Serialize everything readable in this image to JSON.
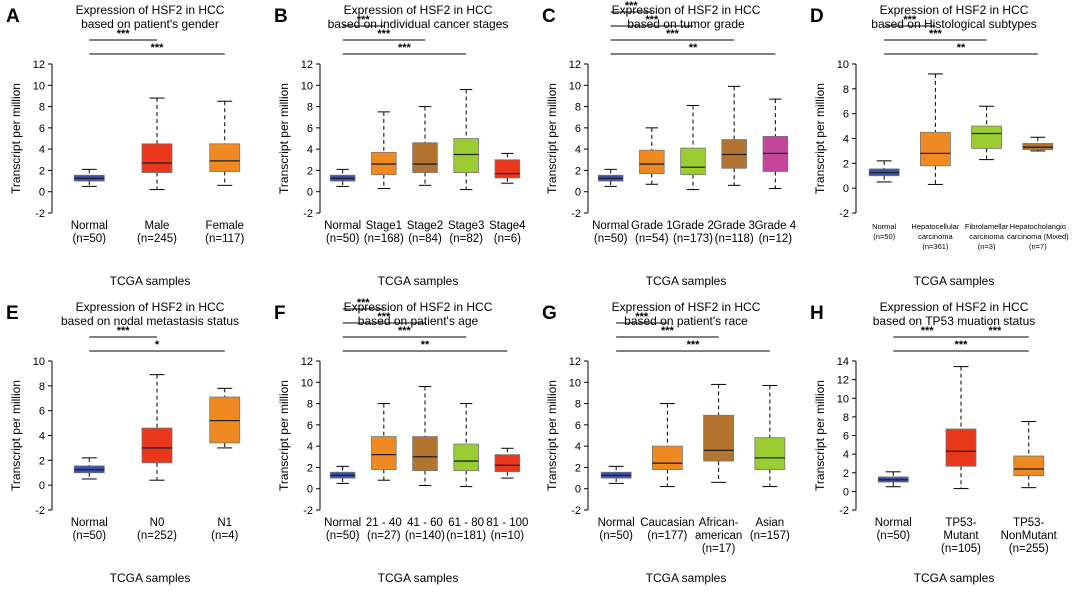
{
  "chart_data": [
    {
      "type": "boxplot",
      "panel_label": "A",
      "title": [
        "Expression of HSF2 in HCC",
        "based on patient's gender"
      ],
      "ylabel": "Transcript per million",
      "xlabel": "TCGA samples",
      "ylim": [
        -2,
        12
      ],
      "yticks": [
        -2,
        0,
        2,
        4,
        6,
        8,
        10,
        12
      ],
      "categories": [
        {
          "name": "Normal",
          "n": "(n=50)",
          "color": "#3b4fb0",
          "min": 0.5,
          "q1": 1.0,
          "median": 1.25,
          "q3": 1.55,
          "max": 2.1
        },
        {
          "name": "Male",
          "n": "(n=245)",
          "color": "#e8371b",
          "min": 0.2,
          "q1": 1.8,
          "median": 2.7,
          "q3": 4.5,
          "max": 8.8
        },
        {
          "name": "Female",
          "n": "(n=117)",
          "color": "#ef8a22",
          "min": 0.6,
          "q1": 1.9,
          "median": 2.9,
          "q3": 4.5,
          "max": 8.5
        }
      ],
      "significance": [
        {
          "from": 0,
          "to": 1,
          "label": "***",
          "level": 0
        },
        {
          "from": 0,
          "to": 2,
          "label": "***",
          "level": 1
        }
      ]
    },
    {
      "type": "boxplot",
      "panel_label": "B",
      "title": [
        "Expression of HSF2 in HCC",
        "based on individual cancer stages"
      ],
      "ylabel": "Transcript per million",
      "xlabel": "TCGA samples",
      "ylim": [
        -2,
        12
      ],
      "yticks": [
        -2,
        0,
        2,
        4,
        6,
        8,
        10,
        12
      ],
      "categories": [
        {
          "name": "Normal",
          "n": "(n=50)",
          "color": "#3b4fb0",
          "min": 0.5,
          "q1": 1.0,
          "median": 1.25,
          "q3": 1.55,
          "max": 2.1
        },
        {
          "name": "Stage1",
          "n": "(n=168)",
          "color": "#ef8a22",
          "min": 0.3,
          "q1": 1.6,
          "median": 2.6,
          "q3": 3.7,
          "max": 7.5
        },
        {
          "name": "Stage2",
          "n": "(n=84)",
          "color": "#b2742e",
          "min": 0.6,
          "q1": 1.8,
          "median": 2.6,
          "q3": 4.6,
          "max": 8.0
        },
        {
          "name": "Stage3",
          "n": "(n=82)",
          "color": "#9acd32",
          "min": 0.2,
          "q1": 1.8,
          "median": 3.5,
          "q3": 5.0,
          "max": 9.6
        },
        {
          "name": "Stage4",
          "n": "(n=6)",
          "color": "#e8371b",
          "min": 0.8,
          "q1": 1.3,
          "median": 1.7,
          "q3": 3.0,
          "max": 3.6
        }
      ],
      "significance": [
        {
          "from": 0,
          "to": 1,
          "label": "***",
          "level": 0
        },
        {
          "from": 0,
          "to": 2,
          "label": "***",
          "level": 1
        },
        {
          "from": 0,
          "to": 3,
          "label": "***",
          "level": 2
        }
      ]
    },
    {
      "type": "boxplot",
      "panel_label": "C",
      "title": [
        "Expression of HSF2 in HCC",
        "based on tumor grade"
      ],
      "ylabel": "Transcript per million",
      "xlabel": "TCGA samples",
      "ylim": [
        -2,
        12
      ],
      "yticks": [
        -2,
        0,
        2,
        4,
        6,
        8,
        10,
        12
      ],
      "categories": [
        {
          "name": "Normal",
          "n": "(n=50)",
          "color": "#3b4fb0",
          "min": 0.5,
          "q1": 1.0,
          "median": 1.25,
          "q3": 1.55,
          "max": 2.1
        },
        {
          "name": "Grade 1",
          "n": "(n=54)",
          "color": "#ef8a22",
          "min": 0.7,
          "q1": 1.7,
          "median": 2.6,
          "q3": 3.9,
          "max": 6.0
        },
        {
          "name": "Grade 2",
          "n": "(n=173)",
          "color": "#9acd32",
          "min": 0.2,
          "q1": 1.6,
          "median": 2.3,
          "q3": 4.1,
          "max": 8.1
        },
        {
          "name": "Grade 3",
          "n": "(n=118)",
          "color": "#b2742e",
          "min": 0.6,
          "q1": 2.2,
          "median": 3.5,
          "q3": 4.9,
          "max": 9.9
        },
        {
          "name": "Grade 4",
          "n": "(n=12)",
          "color": "#c2479b",
          "min": 0.3,
          "q1": 1.9,
          "median": 3.6,
          "q3": 5.2,
          "max": 8.7
        }
      ],
      "significance": [
        {
          "from": 0,
          "to": 1,
          "label": "***",
          "level": 0
        },
        {
          "from": 0,
          "to": 2,
          "label": "***",
          "level": 1
        },
        {
          "from": 0,
          "to": 3,
          "label": "***",
          "level": 2
        },
        {
          "from": 0,
          "to": 4,
          "label": "**",
          "level": 3
        }
      ]
    },
    {
      "type": "boxplot",
      "panel_label": "D",
      "title": [
        "Expression of HSF2 in HCC",
        "based on Histological subtypes"
      ],
      "ylabel": "Transcript per million",
      "xlabel": "TCGA samples",
      "ylim": [
        -2,
        10
      ],
      "yticks": [
        -2,
        0,
        2,
        4,
        6,
        8,
        10
      ],
      "small_labels": true,
      "categories": [
        {
          "name": "Normal",
          "n": "(n=50)",
          "color": "#3b4fb0",
          "min": 0.5,
          "q1": 1.0,
          "median": 1.25,
          "q3": 1.55,
          "max": 2.2
        },
        {
          "name": "Hepatocellular carcinoma",
          "lines": [
            "Hepatocellular",
            "carcinoma"
          ],
          "n": "(n=361)",
          "color": "#ef8a22",
          "min": 0.3,
          "q1": 1.8,
          "median": 2.8,
          "q3": 4.5,
          "max": 9.2
        },
        {
          "name": "Fibrolamellar carcinoma",
          "lines": [
            "Fibrolamellar",
            "carcinoma"
          ],
          "n": "(n=3)",
          "color": "#9acd32",
          "min": 2.3,
          "q1": 3.2,
          "median": 4.4,
          "q3": 5.0,
          "max": 6.6
        },
        {
          "name": "Hepatocholangio carcinoma (Mixed)",
          "lines": [
            "Hepatocholangio",
            "carcinoma (Mixed)"
          ],
          "n": "(n=7)",
          "color": "#b2742e",
          "min": 3.0,
          "q1": 3.1,
          "median": 3.3,
          "q3": 3.6,
          "max": 4.1
        }
      ],
      "significance": [
        {
          "from": 0,
          "to": 1,
          "label": "***",
          "level": 0
        },
        {
          "from": 0,
          "to": 2,
          "label": "***",
          "level": 1
        },
        {
          "from": 0,
          "to": 3,
          "label": "**",
          "level": 2
        }
      ]
    },
    {
      "type": "boxplot",
      "panel_label": "E",
      "title": [
        "Expression of HSF2 in HCC",
        "based on nodal metastasis status"
      ],
      "ylabel": "Transcript per million",
      "xlabel": "TCGA samples",
      "ylim": [
        -2,
        10
      ],
      "yticks": [
        -2,
        0,
        2,
        4,
        6,
        8,
        10
      ],
      "categories": [
        {
          "name": "Normal",
          "n": "(n=50)",
          "color": "#3b4fb0",
          "min": 0.5,
          "q1": 1.0,
          "median": 1.25,
          "q3": 1.55,
          "max": 2.2
        },
        {
          "name": "N0",
          "n": "(n=252)",
          "color": "#e8371b",
          "min": 0.4,
          "q1": 1.8,
          "median": 3.0,
          "q3": 4.6,
          "max": 8.9
        },
        {
          "name": "N1",
          "n": "(n=4)",
          "color": "#ef8a22",
          "min": 3.0,
          "q1": 3.4,
          "median": 5.2,
          "q3": 7.1,
          "max": 7.8
        }
      ],
      "significance": [
        {
          "from": 0,
          "to": 1,
          "label": "***",
          "level": 0
        },
        {
          "from": 0,
          "to": 2,
          "label": "*",
          "level": 1
        }
      ]
    },
    {
      "type": "boxplot",
      "panel_label": "F",
      "title": [
        "Expression of HSF2 in HCC",
        "based on patient's age"
      ],
      "ylabel": "Transcript per million",
      "xlabel": "TCGA samples",
      "ylim": [
        -2,
        12
      ],
      "yticks": [
        -2,
        0,
        2,
        4,
        6,
        8,
        10,
        12
      ],
      "categories": [
        {
          "name": "Normal",
          "n": "(n=50)",
          "color": "#3b4fb0",
          "min": 0.5,
          "q1": 1.0,
          "median": 1.25,
          "q3": 1.55,
          "max": 2.1
        },
        {
          "name": "21 - 40",
          "n": "(n=27)",
          "color": "#ef8a22",
          "min": 0.8,
          "q1": 1.8,
          "median": 3.2,
          "q3": 4.9,
          "max": 8.0
        },
        {
          "name": "41 - 60",
          "n": "(n=140)",
          "color": "#b2742e",
          "min": 0.3,
          "q1": 1.7,
          "median": 3.0,
          "q3": 4.9,
          "max": 9.6
        },
        {
          "name": "61 - 80",
          "n": "(n=181)",
          "color": "#9acd32",
          "min": 0.2,
          "q1": 1.7,
          "median": 2.6,
          "q3": 4.2,
          "max": 8.0
        },
        {
          "name": "81 - 100",
          "n": "(n=10)",
          "color": "#e8371b",
          "min": 1.0,
          "q1": 1.6,
          "median": 2.2,
          "q3": 3.2,
          "max": 3.8
        }
      ],
      "significance": [
        {
          "from": 0,
          "to": 1,
          "label": "***",
          "level": 0
        },
        {
          "from": 0,
          "to": 2,
          "label": "***",
          "level": 1
        },
        {
          "from": 0,
          "to": 3,
          "label": "***",
          "level": 2
        },
        {
          "from": 0,
          "to": 4,
          "label": "**",
          "level": 3
        }
      ]
    },
    {
      "type": "boxplot",
      "panel_label": "G",
      "title": [
        "Expression of HSF2 in HCC",
        "based on patient's race"
      ],
      "ylabel": "Transcript per million",
      "xlabel": "TCGA samples",
      "ylim": [
        -2,
        12
      ],
      "yticks": [
        -2,
        0,
        2,
        4,
        6,
        8,
        10,
        12
      ],
      "categories": [
        {
          "name": "Normal",
          "n": "(n=50)",
          "color": "#3b4fb0",
          "min": 0.5,
          "q1": 1.0,
          "median": 1.25,
          "q3": 1.55,
          "max": 2.1
        },
        {
          "name": "Caucasian",
          "n": "(n=177)",
          "color": "#ef8a22",
          "min": 0.2,
          "q1": 1.8,
          "median": 2.4,
          "q3": 4.0,
          "max": 8.0
        },
        {
          "name": "African-american",
          "lines": [
            "African-",
            "american"
          ],
          "n": "(n=17)",
          "color": "#b2742e",
          "min": 0.6,
          "q1": 2.6,
          "median": 3.6,
          "q3": 6.9,
          "max": 9.8
        },
        {
          "name": "Asian",
          "n": "(n=157)",
          "color": "#9acd32",
          "min": 0.2,
          "q1": 1.8,
          "median": 2.9,
          "q3": 4.8,
          "max": 9.7
        }
      ],
      "significance": [
        {
          "from": 0,
          "to": 1,
          "label": "***",
          "level": 0
        },
        {
          "from": 0,
          "to": 2,
          "label": "***",
          "level": 1
        },
        {
          "from": 0,
          "to": 3,
          "label": "***",
          "level": 2
        }
      ]
    },
    {
      "type": "boxplot",
      "panel_label": "H",
      "title": [
        "Expression of HSF2 in HCC",
        "based on TP53 muation status"
      ],
      "ylabel": "Transcript per million",
      "xlabel": "TCGA samples",
      "ylim": [
        -2,
        14
      ],
      "yticks": [
        -2,
        0,
        2,
        4,
        6,
        8,
        10,
        12,
        14
      ],
      "categories": [
        {
          "name": "Normal",
          "n": "(n=50)",
          "color": "#3b4fb0",
          "min": 0.5,
          "q1": 1.0,
          "median": 1.25,
          "q3": 1.55,
          "max": 2.1
        },
        {
          "name": "TP53-Mutant",
          "lines": [
            "TP53-",
            "Mutant"
          ],
          "n": "(n=105)",
          "color": "#e8371b",
          "min": 0.3,
          "q1": 2.7,
          "median": 4.3,
          "q3": 6.7,
          "max": 13.4
        },
        {
          "name": "TP53-NonMutant",
          "lines": [
            "TP53-",
            "NonMutant"
          ],
          "n": "(n=255)",
          "color": "#ef8a22",
          "min": 0.4,
          "q1": 1.7,
          "median": 2.4,
          "q3": 3.8,
          "max": 7.5
        }
      ],
      "significance": [
        {
          "from": 0,
          "to": 1,
          "label": "***",
          "level": 0
        },
        {
          "from": 1,
          "to": 2,
          "label": "***",
          "level": 0
        },
        {
          "from": 0,
          "to": 2,
          "label": "***",
          "level": 1
        }
      ]
    }
  ]
}
